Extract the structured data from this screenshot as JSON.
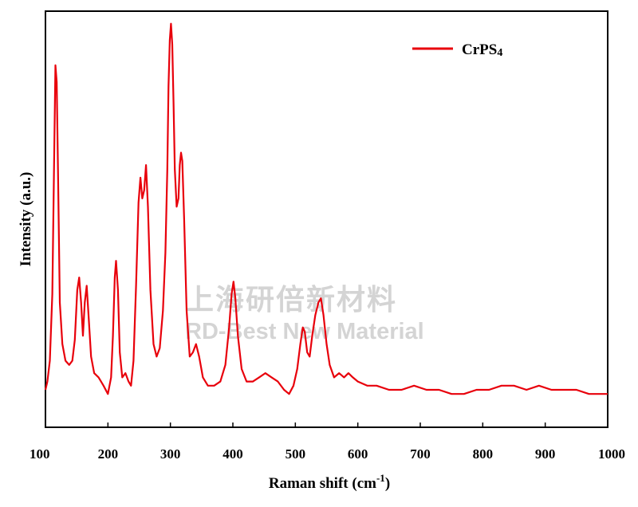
{
  "watermark": {
    "line1": "上海研倍新材料",
    "line2": "RD-Best New Material"
  },
  "chart_data": {
    "type": "line",
    "title": "",
    "xlabel": "Raman shift (cm",
    "xlabel_sup": "-1",
    "xlabel_close": ")",
    "ylabel": "Intensity (a.u.)",
    "xlim": [
      100,
      1000
    ],
    "ylim": [
      0,
      1
    ],
    "x_ticks": [
      "100",
      "200",
      "300",
      "400",
      "500",
      "600",
      "700",
      "800",
      "900",
      "1000"
    ],
    "y_ticks_shown": false,
    "grid": false,
    "legend_position": "top-right",
    "colors": {
      "series": "#e8000b",
      "axis": "#000000",
      "watermark": "#d4d4d4"
    },
    "series": [
      {
        "name": "CrPS",
        "name_sub": "4",
        "points": [
          [
            100,
            0.09
          ],
          [
            103,
            0.11
          ],
          [
            107,
            0.16
          ],
          [
            111,
            0.32
          ],
          [
            114,
            0.66
          ],
          [
            116,
            0.87
          ],
          [
            118,
            0.83
          ],
          [
            120,
            0.62
          ],
          [
            123,
            0.3
          ],
          [
            127,
            0.2
          ],
          [
            132,
            0.16
          ],
          [
            138,
            0.15
          ],
          [
            143,
            0.16
          ],
          [
            147,
            0.21
          ],
          [
            151,
            0.33
          ],
          [
            154,
            0.36
          ],
          [
            157,
            0.3
          ],
          [
            160,
            0.22
          ],
          [
            163,
            0.3
          ],
          [
            166,
            0.34
          ],
          [
            169,
            0.27
          ],
          [
            173,
            0.17
          ],
          [
            178,
            0.13
          ],
          [
            185,
            0.12
          ],
          [
            193,
            0.1
          ],
          [
            200,
            0.08
          ],
          [
            205,
            0.12
          ],
          [
            208,
            0.22
          ],
          [
            211,
            0.36
          ],
          [
            213,
            0.4
          ],
          [
            216,
            0.33
          ],
          [
            219,
            0.18
          ],
          [
            223,
            0.12
          ],
          [
            228,
            0.13
          ],
          [
            233,
            0.11
          ],
          [
            237,
            0.1
          ],
          [
            241,
            0.16
          ],
          [
            245,
            0.34
          ],
          [
            249,
            0.54
          ],
          [
            252,
            0.6
          ],
          [
            255,
            0.55
          ],
          [
            258,
            0.57
          ],
          [
            261,
            0.63
          ],
          [
            264,
            0.53
          ],
          [
            268,
            0.33
          ],
          [
            273,
            0.2
          ],
          [
            278,
            0.17
          ],
          [
            283,
            0.19
          ],
          [
            288,
            0.28
          ],
          [
            292,
            0.42
          ],
          [
            295,
            0.62
          ],
          [
            297,
            0.82
          ],
          [
            299,
            0.93
          ],
          [
            301,
            0.97
          ],
          [
            303,
            0.92
          ],
          [
            305,
            0.78
          ],
          [
            307,
            0.62
          ],
          [
            310,
            0.53
          ],
          [
            313,
            0.55
          ],
          [
            315,
            0.63
          ],
          [
            317,
            0.66
          ],
          [
            319,
            0.64
          ],
          [
            322,
            0.5
          ],
          [
            326,
            0.28
          ],
          [
            331,
            0.17
          ],
          [
            336,
            0.18
          ],
          [
            341,
            0.2
          ],
          [
            346,
            0.17
          ],
          [
            352,
            0.12
          ],
          [
            360,
            0.1
          ],
          [
            370,
            0.1
          ],
          [
            380,
            0.11
          ],
          [
            388,
            0.15
          ],
          [
            394,
            0.24
          ],
          [
            398,
            0.32
          ],
          [
            401,
            0.35
          ],
          [
            404,
            0.31
          ],
          [
            408,
            0.22
          ],
          [
            414,
            0.14
          ],
          [
            422,
            0.11
          ],
          [
            432,
            0.11
          ],
          [
            442,
            0.12
          ],
          [
            452,
            0.13
          ],
          [
            462,
            0.12
          ],
          [
            472,
            0.11
          ],
          [
            482,
            0.09
          ],
          [
            490,
            0.08
          ],
          [
            497,
            0.1
          ],
          [
            503,
            0.14
          ],
          [
            508,
            0.2
          ],
          [
            512,
            0.24
          ],
          [
            515,
            0.23
          ],
          [
            519,
            0.18
          ],
          [
            523,
            0.17
          ],
          [
            527,
            0.22
          ],
          [
            532,
            0.27
          ],
          [
            537,
            0.3
          ],
          [
            541,
            0.31
          ],
          [
            545,
            0.27
          ],
          [
            550,
            0.2
          ],
          [
            555,
            0.15
          ],
          [
            562,
            0.12
          ],
          [
            570,
            0.13
          ],
          [
            578,
            0.12
          ],
          [
            585,
            0.13
          ],
          [
            592,
            0.12
          ],
          [
            600,
            0.11
          ],
          [
            615,
            0.1
          ],
          [
            630,
            0.1
          ],
          [
            650,
            0.09
          ],
          [
            670,
            0.09
          ],
          [
            690,
            0.1
          ],
          [
            710,
            0.09
          ],
          [
            730,
            0.09
          ],
          [
            750,
            0.08
          ],
          [
            770,
            0.08
          ],
          [
            790,
            0.09
          ],
          [
            810,
            0.09
          ],
          [
            830,
            0.1
          ],
          [
            850,
            0.1
          ],
          [
            870,
            0.09
          ],
          [
            890,
            0.1
          ],
          [
            910,
            0.09
          ],
          [
            930,
            0.09
          ],
          [
            950,
            0.09
          ],
          [
            970,
            0.08
          ],
          [
            990,
            0.08
          ],
          [
            1000,
            0.08
          ]
        ]
      }
    ]
  }
}
